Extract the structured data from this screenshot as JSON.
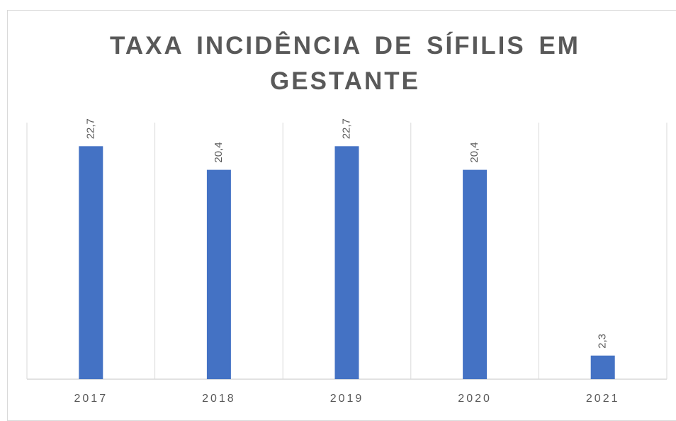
{
  "chart_data": {
    "type": "bar",
    "title": "TAXA INCIDÊNCIA DE SÍFILIS EM GESTANTE",
    "categories": [
      "2017",
      "2018",
      "2019",
      "2020",
      "2021"
    ],
    "values": [
      22.7,
      20.4,
      22.7,
      20.4,
      2.3
    ],
    "value_labels": [
      "22,7",
      "20,4",
      "22,7",
      "20,4",
      "2,3"
    ],
    "color": "#4472c4",
    "ylim": [
      0,
      25
    ]
  }
}
